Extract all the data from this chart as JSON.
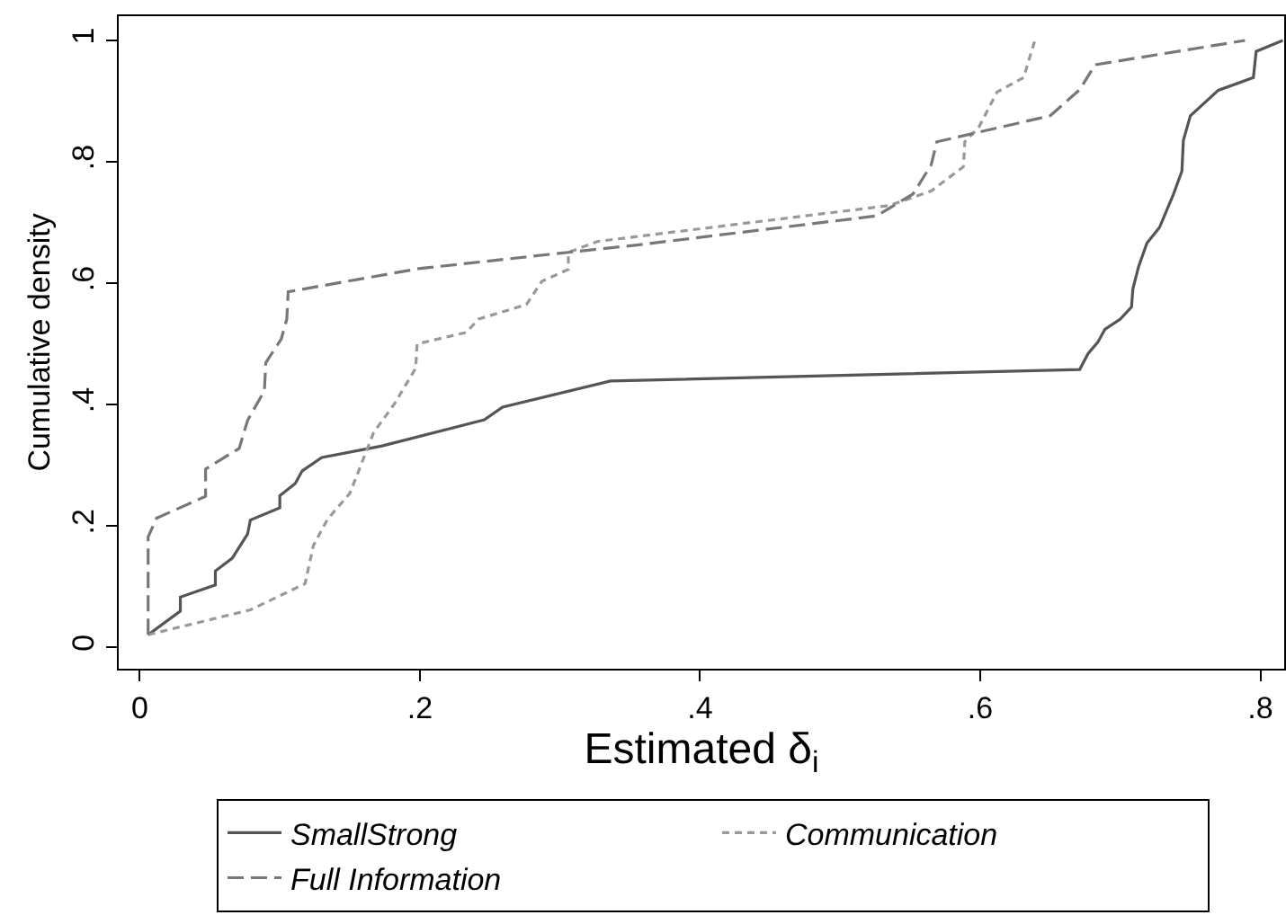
{
  "chart_data": {
    "type": "line",
    "xlabel": "Estimated δ$_{i}$",
    "ylabel": "Cumulative density",
    "xlim": [
      -0.015,
      0.817
    ],
    "xticks": [
      0,
      {
        "value": 0.2,
        "label": ".2"
      },
      {
        "value": 0.4,
        "label": ".4"
      },
      {
        "value": 0.6,
        "label": ".6"
      },
      {
        "value": 0.8,
        "label": ".8"
      }
    ],
    "ylim": [
      -0.035,
      1.04
    ],
    "yticks": [
      0,
      {
        "value": 0.2,
        "label": ".2"
      },
      {
        "value": 0.4,
        "label": ".4"
      },
      {
        "value": 0.6,
        "label": ".6"
      },
      {
        "value": 0.8,
        "label": ".8"
      },
      1
    ],
    "grid": false,
    "legend": "bottom",
    "marker": "none",
    "series": [
      {
        "name": "SmallStrong",
        "color": "#555555",
        "line_style": "solid",
        "x": [
          0.006,
          0.029,
          0.029,
          0.054,
          0.054,
          0.066,
          0.077,
          0.079,
          0.1,
          0.1,
          0.111,
          0.116,
          0.13,
          0.173,
          0.246,
          0.259,
          0.336,
          0.671,
          0.677,
          0.684,
          0.689,
          0.7,
          0.708,
          0.709,
          0.713,
          0.719,
          0.728,
          0.738,
          0.744,
          0.745,
          0.75,
          0.77,
          0.795,
          0.797,
          0.816
        ],
        "values": [
          0.021,
          0.06,
          0.083,
          0.103,
          0.126,
          0.147,
          0.187,
          0.21,
          0.23,
          0.25,
          0.27,
          0.291,
          0.313,
          0.332,
          0.375,
          0.396,
          0.439,
          0.458,
          0.484,
          0.503,
          0.524,
          0.541,
          0.561,
          0.591,
          0.627,
          0.666,
          0.692,
          0.747,
          0.785,
          0.835,
          0.876,
          0.918,
          0.939,
          0.982,
          1.0
        ]
      },
      {
        "name": "Communication",
        "color": "#999999",
        "line_style": "dotted",
        "x": [
          0.006,
          0.079,
          0.118,
          0.124,
          0.134,
          0.15,
          0.167,
          0.182,
          0.197,
          0.198,
          0.233,
          0.242,
          0.276,
          0.287,
          0.306,
          0.306,
          0.327,
          0.355,
          0.535,
          0.565,
          0.588,
          0.589,
          0.599,
          0.612,
          0.631,
          0.639
        ],
        "values": [
          0.021,
          0.062,
          0.105,
          0.168,
          0.211,
          0.254,
          0.354,
          0.402,
          0.46,
          0.5,
          0.519,
          0.541,
          0.565,
          0.603,
          0.623,
          0.651,
          0.669,
          0.677,
          0.728,
          0.752,
          0.792,
          0.833,
          0.857,
          0.915,
          0.939,
          1.0
        ]
      },
      {
        "name": "Full Information",
        "color": "#777777",
        "line_style": "dashed",
        "x": [
          0.006,
          0.006,
          0.006,
          0.012,
          0.047,
          0.047,
          0.071,
          0.077,
          0.089,
          0.09,
          0.101,
          0.105,
          0.106,
          0.199,
          0.306,
          0.355,
          0.526,
          0.552,
          0.565,
          0.569,
          0.65,
          0.671,
          0.682,
          0.789
        ],
        "values": [
          0.021,
          0.067,
          0.182,
          0.213,
          0.249,
          0.294,
          0.328,
          0.374,
          0.423,
          0.469,
          0.508,
          0.541,
          0.586,
          0.624,
          0.651,
          0.663,
          0.711,
          0.747,
          0.795,
          0.833,
          0.876,
          0.919,
          0.96,
          1.0
        ]
      }
    ]
  }
}
